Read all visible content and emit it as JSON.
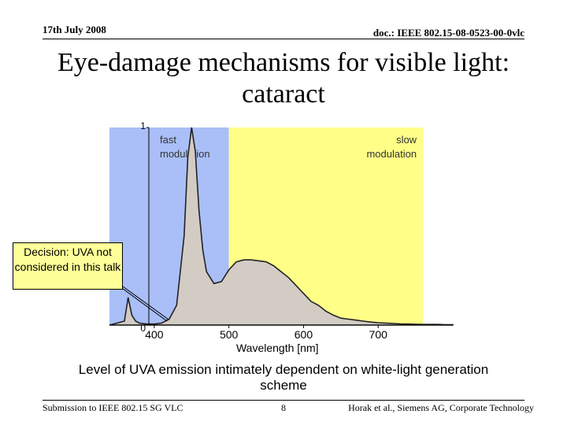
{
  "header": {
    "date": "17th July 2008",
    "doc_id": "doc.: IEEE 802.15-08-0523-00-0vlc"
  },
  "slide": {
    "title": "Eye-damage mechanisms for visible light: cataract",
    "callout": "Decision: UVA not considered in this talk",
    "caption": "Level of UVA emission intimately dependent on white-light generation scheme"
  },
  "footer": {
    "left": "Submission to IEEE 802.15 SG VLC",
    "page": "8",
    "right": "Horak et al., Siemens AG, Corporate Technology"
  },
  "colors": {
    "fast_region": "#aabff8",
    "slow_region": "#ffff88",
    "spectrum_fill": "#d2ccc4",
    "callout_bg": "#ffff99"
  },
  "chart_data": {
    "type": "area",
    "xlabel": "Wavelength [nm]",
    "ylabel": "",
    "xticks": [
      "400",
      "500",
      "600",
      "700"
    ],
    "yticks": [
      "0",
      "1"
    ],
    "xlim": [
      340,
      800
    ],
    "ylim": [
      0,
      1
    ],
    "regions": [
      {
        "label": "fast modulation",
        "x_range": [
          340,
          500
        ]
      },
      {
        "label": "slow modulation",
        "x_range": [
          500,
          760
        ]
      }
    ],
    "x": [
      340,
      350,
      360,
      365,
      370,
      375,
      380,
      390,
      400,
      410,
      420,
      430,
      440,
      445,
      450,
      455,
      460,
      465,
      470,
      480,
      490,
      500,
      510,
      520,
      530,
      540,
      550,
      560,
      570,
      580,
      590,
      600,
      610,
      620,
      630,
      640,
      650,
      660,
      670,
      680,
      690,
      700,
      710,
      720,
      730,
      740,
      750,
      760,
      770,
      780,
      790,
      800
    ],
    "values": [
      0.0,
      0.01,
      0.02,
      0.14,
      0.05,
      0.02,
      0.01,
      0.005,
      0.005,
      0.01,
      0.03,
      0.1,
      0.45,
      0.85,
      1.0,
      0.88,
      0.58,
      0.38,
      0.27,
      0.21,
      0.22,
      0.28,
      0.32,
      0.33,
      0.33,
      0.325,
      0.32,
      0.3,
      0.27,
      0.24,
      0.2,
      0.16,
      0.12,
      0.1,
      0.07,
      0.05,
      0.035,
      0.03,
      0.025,
      0.02,
      0.015,
      0.012,
      0.01,
      0.008,
      0.006,
      0.005,
      0.004,
      0.003,
      0.003,
      0.003,
      0.002,
      0.002
    ]
  }
}
